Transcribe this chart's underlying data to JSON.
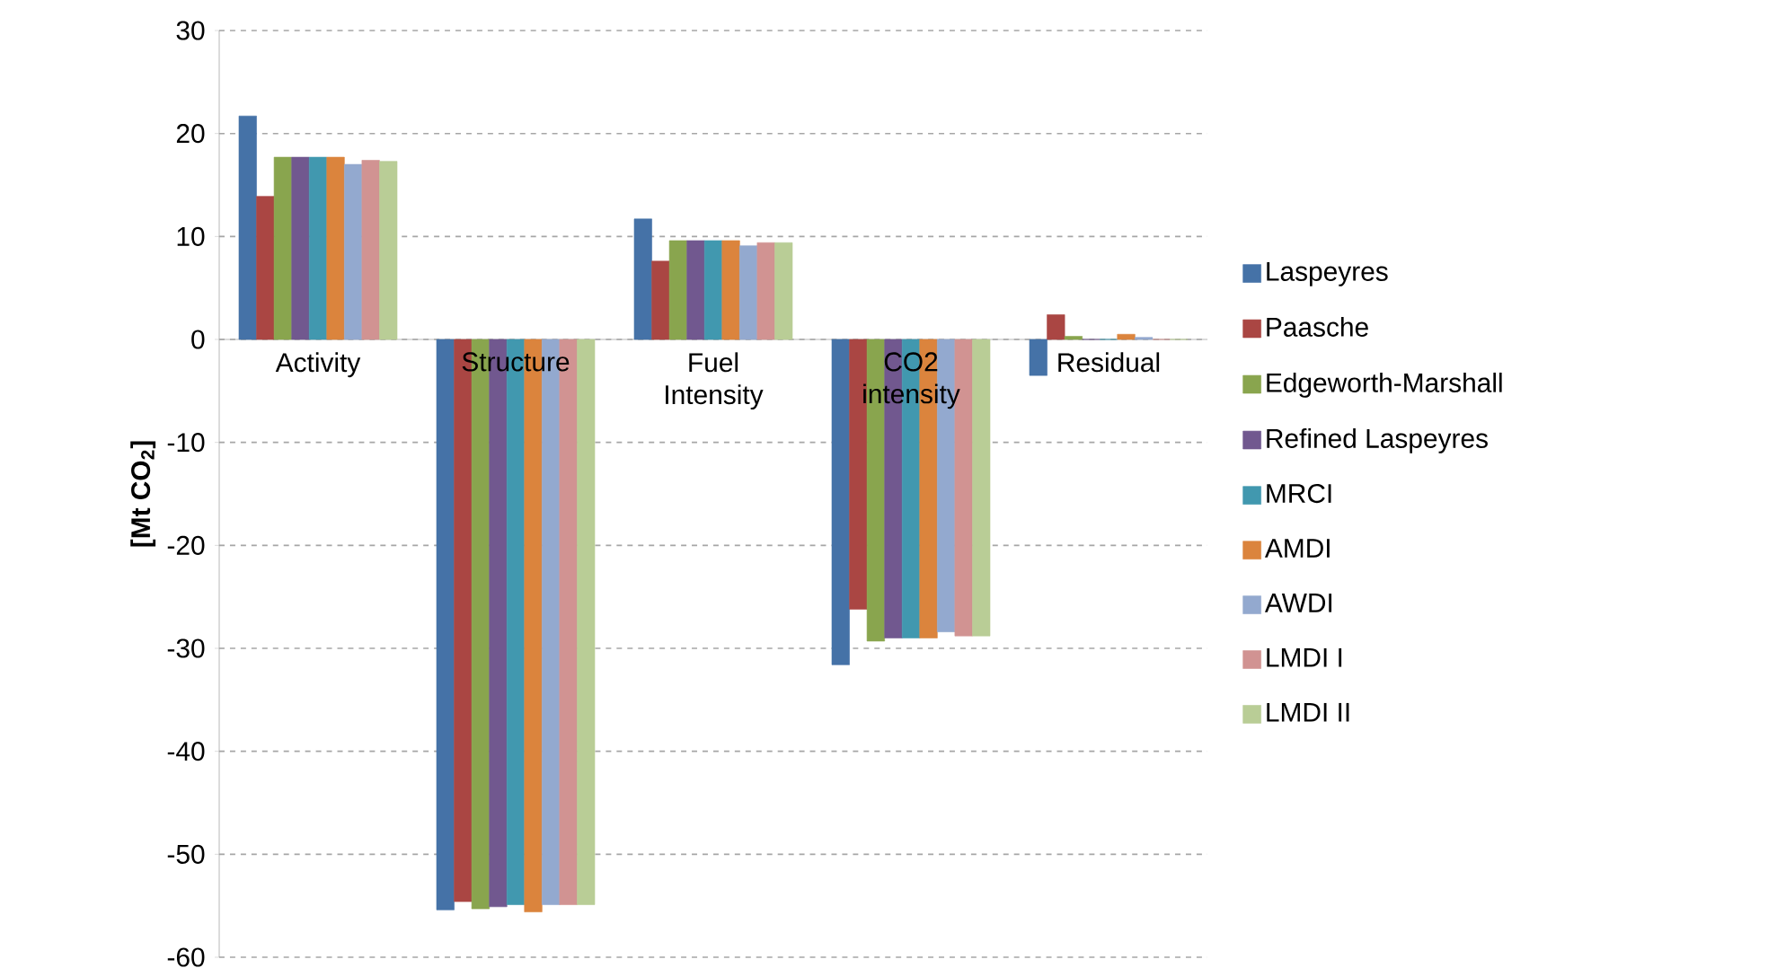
{
  "chart_data": {
    "type": "bar",
    "ylabel": "[Mt CO$_{2}$]",
    "categories": [
      "Activity",
      "Structure",
      "Fuel Intensity",
      "CO2 intensity",
      "Residual"
    ],
    "series": [
      {
        "name": "Laspeyres",
        "color": "#4572a7",
        "values": [
          21.7,
          -55.4,
          11.7,
          -31.6,
          -3.5
        ]
      },
      {
        "name": "Paasche",
        "color": "#aa4643",
        "values": [
          13.9,
          -54.6,
          7.6,
          -26.2,
          2.4
        ]
      },
      {
        "name": "Edgeworth-Marshall",
        "color": "#89a54e",
        "values": [
          17.7,
          -55.3,
          9.6,
          -29.3,
          0.3
        ]
      },
      {
        "name": "Refined Laspeyres",
        "color": "#71588f",
        "values": [
          17.7,
          -55.1,
          9.6,
          -29.0,
          0
        ]
      },
      {
        "name": "MRCI",
        "color": "#4198af",
        "values": [
          17.7,
          -54.9,
          9.6,
          -29.0,
          0
        ]
      },
      {
        "name": "AMDI",
        "color": "#db843d",
        "values": [
          17.7,
          -55.6,
          9.6,
          -29.0,
          0.5
        ]
      },
      {
        "name": "AWDI",
        "color": "#93a9cf",
        "values": [
          17.0,
          -54.9,
          9.1,
          -28.4,
          0.2
        ]
      },
      {
        "name": "LMDI I",
        "color": "#d19392",
        "values": [
          17.4,
          -54.9,
          9.4,
          -28.8,
          0
        ]
      },
      {
        "name": "LMDI II",
        "color": "#b9cd96",
        "values": [
          17.3,
          -54.9,
          9.4,
          -28.8,
          0
        ]
      }
    ],
    "ylim": [
      -60,
      30
    ],
    "yticks": [
      -60,
      -50,
      -40,
      -30,
      -20,
      -10,
      0,
      10,
      20,
      30
    ],
    "grid": "y",
    "legend": "right"
  }
}
